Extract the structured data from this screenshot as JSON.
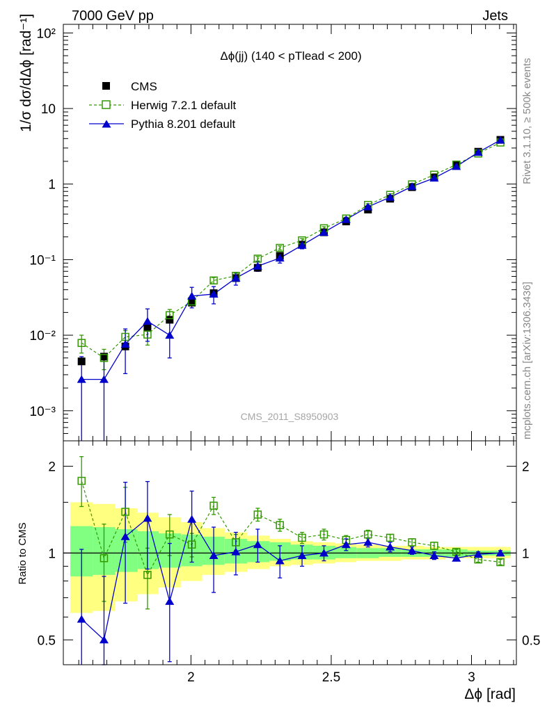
{
  "header": {
    "left": "7000 GeV pp",
    "right": "Jets"
  },
  "side_text": {
    "rivet": "Rivet 3.1.10, ≥ 500k events",
    "mcplots": "mcplots.cern.ch [arXiv:1306.3436]"
  },
  "watermark": "CMS_2011_S8950903",
  "colors": {
    "cms": "#000000",
    "herwig": "#339900",
    "pythia": "#0000cc",
    "band_outer": "#ffff80",
    "band_inner": "#80ff80"
  },
  "chart_data": [
    {
      "type": "scatter",
      "panel": "main",
      "title": "Δϕ(jj) (140 < pTlead < 200)",
      "xlabel": "Δϕ [rad]",
      "ylabel": "1/σ dσ/dΔϕ [rad⁻¹]",
      "yscale": "log",
      "xlim": [
        1.545,
        3.16
      ],
      "ylim": [
        0.0004,
        130
      ],
      "ytick_labels": [
        "10⁻³",
        "10⁻²",
        "10⁻¹",
        "1",
        "10",
        "10²"
      ],
      "legend_position": "top-left",
      "x": [
        1.61,
        1.69,
        1.766,
        1.845,
        1.924,
        2.003,
        2.081,
        2.16,
        2.238,
        2.317,
        2.396,
        2.474,
        2.553,
        2.631,
        2.71,
        2.788,
        2.867,
        2.946,
        3.024,
        3.103
      ],
      "series": [
        {
          "name": "CMS",
          "marker": "filled-square",
          "values": [
            0.0045,
            0.0052,
            0.0071,
            0.0125,
            0.016,
            0.027,
            0.036,
            0.057,
            0.078,
            0.112,
            0.158,
            0.23,
            0.32,
            0.46,
            0.64,
            0.91,
            1.22,
            1.78,
            2.68,
            3.85
          ]
        },
        {
          "name": "Herwig 7.2.1 default",
          "marker": "open-square",
          "line": "dashed",
          "values": [
            0.0079,
            0.005,
            0.0095,
            0.0102,
            0.0184,
            0.028,
            0.053,
            0.061,
            0.103,
            0.143,
            0.18,
            0.26,
            0.35,
            0.53,
            0.72,
            0.99,
            1.33,
            1.81,
            2.54,
            3.55
          ],
          "errors": [
            0.0021,
            0.0015,
            0.002,
            0.0028,
            0.0035,
            0.003,
            0.005,
            0.005,
            0.007,
            0.009,
            0.01,
            0.013,
            0.015,
            0.02,
            0.025,
            0.03,
            0.04,
            0.05,
            0.06,
            0.08
          ]
        },
        {
          "name": "Pythia 8.201 default",
          "marker": "filled-triangle",
          "line": "solid",
          "values": [
            0.0026,
            0.0026,
            0.0076,
            0.0153,
            0.01,
            0.033,
            0.035,
            0.057,
            0.082,
            0.105,
            0.155,
            0.23,
            0.34,
            0.5,
            0.67,
            0.93,
            1.2,
            1.71,
            2.63,
            3.82
          ],
          "errors": [
            0.0026,
            0.0026,
            0.0045,
            0.007,
            0.005,
            0.01,
            0.009,
            0.011,
            0.012,
            0.015,
            0.016,
            0.018,
            0.02,
            0.025,
            0.03,
            0.04,
            0.05,
            0.06,
            0.08,
            0.1
          ]
        }
      ]
    },
    {
      "type": "scatter",
      "panel": "ratio",
      "ylabel": "Ratio to CMS",
      "yscale": "log",
      "xlim": [
        1.545,
        3.16
      ],
      "ylim": [
        0.41,
        2.45
      ],
      "xticks": [
        2,
        2.5,
        3
      ],
      "yticks": [
        0.5,
        1,
        2
      ],
      "reference_line": 1,
      "uncertainty_bands": {
        "x_edges": [
          1.57,
          1.65,
          1.73,
          1.81,
          1.885,
          1.965,
          2.04,
          2.12,
          2.2,
          2.28,
          2.355,
          2.435,
          2.515,
          2.59,
          2.67,
          2.75,
          2.83,
          2.905,
          2.985,
          3.065,
          3.14
        ],
        "outer_low": [
          0.62,
          0.63,
          0.68,
          0.72,
          0.76,
          0.8,
          0.84,
          0.86,
          0.88,
          0.9,
          0.91,
          0.92,
          0.93,
          0.94,
          0.94,
          0.95,
          0.95,
          0.96,
          0.96,
          0.96
        ],
        "outer_high": [
          1.5,
          1.48,
          1.43,
          1.38,
          1.33,
          1.28,
          1.22,
          1.18,
          1.15,
          1.12,
          1.1,
          1.09,
          1.08,
          1.07,
          1.06,
          1.06,
          1.05,
          1.05,
          1.05,
          1.05
        ],
        "inner_low": [
          0.83,
          0.84,
          0.86,
          0.88,
          0.89,
          0.9,
          0.91,
          0.92,
          0.93,
          0.94,
          0.95,
          0.95,
          0.96,
          0.96,
          0.97,
          0.97,
          0.97,
          0.97,
          0.98,
          0.98
        ],
        "inner_high": [
          1.24,
          1.23,
          1.21,
          1.19,
          1.17,
          1.16,
          1.14,
          1.12,
          1.1,
          1.09,
          1.07,
          1.06,
          1.05,
          1.04,
          1.04,
          1.03,
          1.03,
          1.03,
          1.02,
          1.02
        ]
      },
      "x": [
        1.61,
        1.69,
        1.766,
        1.845,
        1.924,
        2.003,
        2.081,
        2.16,
        2.238,
        2.317,
        2.396,
        2.474,
        2.553,
        2.631,
        2.71,
        2.788,
        2.867,
        2.946,
        3.024,
        3.103
      ],
      "series": [
        {
          "name": "Herwig 7.2.1 default",
          "values": [
            1.78,
            0.96,
            1.39,
            0.84,
            1.16,
            1.07,
            1.46,
            1.09,
            1.36,
            1.25,
            1.13,
            1.16,
            1.11,
            1.16,
            1.13,
            1.09,
            1.06,
            1.01,
            0.95,
            0.93
          ],
          "err_low": [
            0.33,
            0.28,
            0.3,
            0.2,
            0.18,
            0.1,
            0.1,
            0.07,
            0.07,
            0.06,
            0.05,
            0.05,
            0.04,
            0.04,
            0.03,
            0.03,
            0.03,
            0.02,
            0.02,
            0.02
          ],
          "err_high": [
            0.38,
            0.3,
            0.3,
            0.2,
            0.2,
            0.1,
            0.1,
            0.07,
            0.07,
            0.06,
            0.05,
            0.05,
            0.04,
            0.04,
            0.03,
            0.03,
            0.03,
            0.02,
            0.02,
            0.02
          ]
        },
        {
          "name": "Pythia 8.201 default",
          "values": [
            0.59,
            0.5,
            1.14,
            1.32,
            0.68,
            1.31,
            0.98,
            1.01,
            1.07,
            0.94,
            0.98,
            1.0,
            1.07,
            1.09,
            1.05,
            1.02,
            0.98,
            0.96,
            0.99,
            1.0
          ],
          "err_low": [
            0.18,
            0.09,
            0.47,
            0.44,
            0.26,
            0.38,
            0.25,
            0.17,
            0.14,
            0.12,
            0.08,
            0.06,
            0.05,
            0.04,
            0.04,
            0.03,
            0.03,
            0.02,
            0.02,
            0.02
          ],
          "err_high": [
            0.44,
            0.33,
            0.62,
            0.45,
            0.4,
            0.33,
            0.25,
            0.17,
            0.14,
            0.12,
            0.08,
            0.06,
            0.05,
            0.04,
            0.04,
            0.03,
            0.03,
            0.02,
            0.02,
            0.02
          ]
        }
      ]
    }
  ]
}
